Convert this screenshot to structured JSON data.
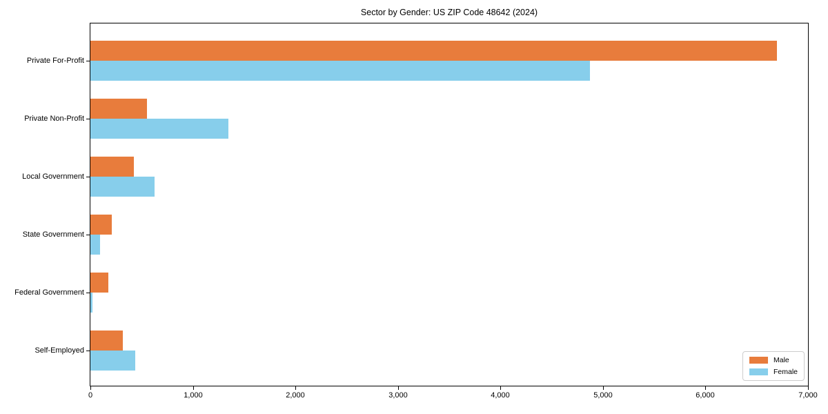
{
  "chart_data": {
    "type": "bar",
    "orientation": "horizontal",
    "title": "Sector by Gender: US ZIP Code 48642 (2024)",
    "categories": [
      "Private For-Profit",
      "Private Non-Profit",
      "Local Government",
      "State Government",
      "Federal Government",
      "Self-Employed"
    ],
    "series": [
      {
        "name": "Male",
        "color": "#e87c3c",
        "values": [
          6700,
          550,
          425,
          210,
          175,
          315
        ]
      },
      {
        "name": "Female",
        "color": "#87ceeb",
        "values": [
          4870,
          1345,
          625,
          95,
          20,
          435
        ]
      }
    ],
    "xlabel": "",
    "ylabel": "",
    "xlim": [
      0,
      7000
    ],
    "x_ticks": [
      0,
      1000,
      2000,
      3000,
      4000,
      5000,
      6000,
      7000
    ],
    "x_tick_labels": [
      "0",
      "1,000",
      "2,000",
      "3,000",
      "4,000",
      "5,000",
      "6,000",
      "7,000"
    ],
    "grid": false,
    "legend_position": "lower right",
    "spine_color": "#000000",
    "background_color": "#ffffff"
  }
}
